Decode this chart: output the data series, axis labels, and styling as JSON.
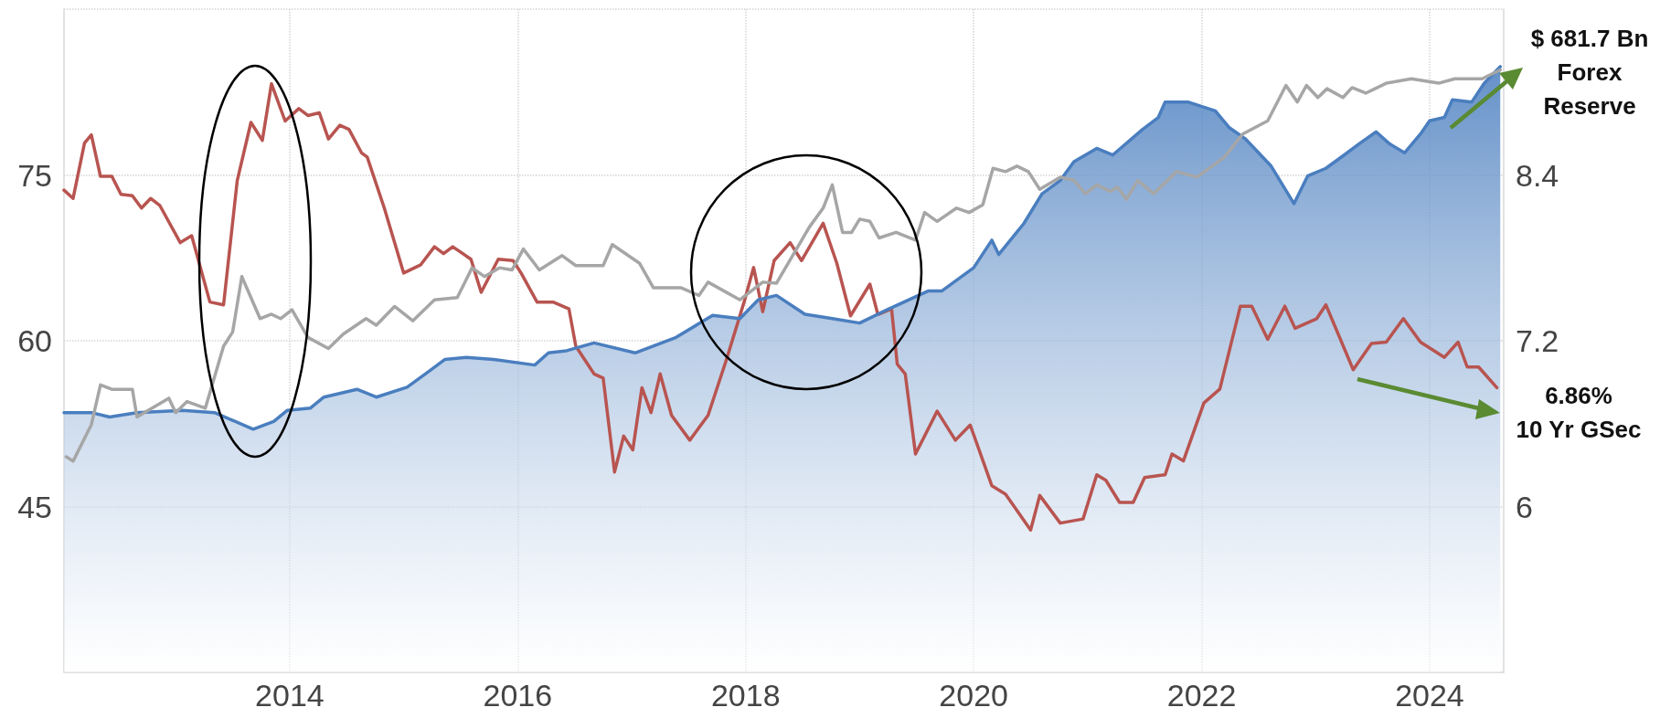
{
  "chart_data": {
    "type": "line",
    "annotations": [
      "$ 681.7 Bn\nForex\nReserve",
      "6.86%\n10 Yr GSec"
    ],
    "xlim": [
      2012.02,
      2024.65
    ],
    "xticks": [
      2014,
      2016,
      2018,
      2020,
      2022,
      2024
    ],
    "ylim": [
      30,
      90
    ],
    "yticks": [
      {
        "value": 30,
        "label": null
      },
      45,
      60,
      75,
      {
        "value": 90,
        "label": null
      }
    ],
    "y2lim": [
      4.8,
      9.6
    ],
    "y2ticks": [
      6,
      7.2,
      8.4
    ],
    "grid": true,
    "series": [
      {
        "axis": "y2",
        "color": "#b85450",
        "x": [
          2012.02,
          2012.1,
          2012.2,
          2012.26,
          2012.34,
          2012.44,
          2012.52,
          2012.62,
          2012.7,
          2012.78,
          2012.86,
          2013.04,
          2013.14,
          2013.3,
          2013.42,
          2013.54,
          2013.66,
          2013.76,
          2013.84,
          2013.96,
          2014.08,
          2014.16,
          2014.26,
          2014.34,
          2014.44,
          2014.52,
          2014.63,
          2014.68,
          2014.83,
          2015.0,
          2015.15,
          2015.27,
          2015.35,
          2015.43,
          2015.59,
          2015.68,
          2015.83,
          2015.96,
          2016.03,
          2016.17,
          2016.31,
          2016.45,
          2016.51,
          2016.67,
          2016.75,
          2016.85,
          2016.93,
          2017.01,
          2017.09,
          2017.17,
          2017.25,
          2017.35,
          2017.51,
          2017.67,
          2017.83,
          2017.99,
          2018.07,
          2018.15,
          2018.25,
          2018.39,
          2018.49,
          2018.68,
          2018.8,
          2018.92,
          2019.09,
          2019.16,
          2019.28,
          2019.33,
          2019.4,
          2019.49,
          2019.68,
          2019.84,
          2019.97,
          2020.16,
          2020.28,
          2020.5,
          2020.58,
          2020.76,
          2020.96,
          2021.08,
          2021.16,
          2021.28,
          2021.4,
          2021.5,
          2021.68,
          2021.74,
          2021.84,
          2022.02,
          2022.16,
          2022.34,
          2022.44,
          2022.58,
          2022.73,
          2022.82,
          2023.01,
          2023.09,
          2023.33,
          2023.49,
          2023.62,
          2023.77,
          2023.92,
          2024.13,
          2024.25,
          2024.33,
          2024.43,
          2024.59
        ],
        "values": [
          8.29,
          8.23,
          8.63,
          8.69,
          8.39,
          8.39,
          8.26,
          8.25,
          8.16,
          8.23,
          8.18,
          7.91,
          7.96,
          7.48,
          7.46,
          8.36,
          8.78,
          8.65,
          9.06,
          8.79,
          8.88,
          8.83,
          8.85,
          8.66,
          8.76,
          8.73,
          8.56,
          8.53,
          8.16,
          7.69,
          7.75,
          7.88,
          7.83,
          7.88,
          7.79,
          7.55,
          7.79,
          7.78,
          7.69,
          7.48,
          7.48,
          7.43,
          7.16,
          6.96,
          6.93,
          6.25,
          6.51,
          6.41,
          6.86,
          6.68,
          6.96,
          6.66,
          6.48,
          6.66,
          7.06,
          7.49,
          7.73,
          7.41,
          7.78,
          7.91,
          7.78,
          8.05,
          7.76,
          7.38,
          7.61,
          7.39,
          7.43,
          7.03,
          6.96,
          6.38,
          6.69,
          6.48,
          6.59,
          6.15,
          6.09,
          5.83,
          6.08,
          5.88,
          5.91,
          6.23,
          6.19,
          6.03,
          6.03,
          6.21,
          6.23,
          6.38,
          6.33,
          6.75,
          6.85,
          7.45,
          7.45,
          7.21,
          7.45,
          7.29,
          7.36,
          7.46,
          6.99,
          7.18,
          7.19,
          7.36,
          7.19,
          7.08,
          7.19,
          7.01,
          7.01,
          6.86
        ]
      },
      {
        "type": "area",
        "color": "#4a7ebf",
        "x": [
          2012.02,
          2012.26,
          2012.42,
          2012.66,
          2013.06,
          2013.34,
          2013.68,
          2013.86,
          2013.98,
          2014.18,
          2014.3,
          2014.59,
          2014.76,
          2015.03,
          2015.19,
          2015.36,
          2015.55,
          2015.79,
          2016.15,
          2016.27,
          2016.43,
          2016.67,
          2017.03,
          2017.39,
          2017.71,
          2017.95,
          2018.11,
          2018.27,
          2018.52,
          2018.76,
          2019.0,
          2019.24,
          2019.6,
          2019.72,
          2020.0,
          2020.16,
          2020.22,
          2020.44,
          2020.6,
          2020.76,
          2020.88,
          2021.08,
          2021.22,
          2021.48,
          2021.62,
          2021.68,
          2021.88,
          2022.12,
          2022.24,
          2022.38,
          2022.61,
          2022.81,
          2022.93,
          2023.09,
          2023.25,
          2023.38,
          2023.53,
          2023.65,
          2023.78,
          2023.92,
          2024.0,
          2024.13,
          2024.2,
          2024.37,
          2024.48,
          2024.62
        ],
        "values": [
          53.5,
          53.5,
          53.1,
          53.5,
          53.7,
          53.5,
          52.0,
          52.7,
          53.7,
          53.9,
          54.9,
          55.6,
          54.9,
          55.8,
          57.0,
          58.3,
          58.5,
          58.3,
          57.8,
          58.9,
          59.1,
          59.8,
          58.9,
          60.3,
          62.3,
          62.0,
          63.7,
          64.1,
          62.4,
          62.0,
          61.6,
          62.8,
          64.5,
          64.5,
          66.6,
          69.1,
          67.8,
          70.6,
          73.3,
          74.5,
          76.2,
          77.4,
          76.8,
          79.1,
          80.2,
          81.6,
          81.6,
          80.8,
          79.3,
          78.3,
          75.8,
          72.4,
          74.9,
          75.6,
          76.8,
          77.8,
          78.9,
          77.8,
          77.0,
          78.7,
          79.9,
          80.2,
          81.8,
          81.6,
          83.3,
          84.8
        ]
      },
      {
        "color": "#a6a6a6",
        "x": [
          2012.04,
          2012.1,
          2012.26,
          2012.34,
          2012.44,
          2012.62,
          2012.66,
          2012.94,
          2013.0,
          2013.1,
          2013.26,
          2013.42,
          2013.5,
          2013.58,
          2013.74,
          2013.84,
          2013.92,
          2014.02,
          2014.16,
          2014.34,
          2014.47,
          2014.67,
          2014.76,
          2014.92,
          2015.08,
          2015.27,
          2015.47,
          2015.6,
          2015.71,
          2015.84,
          2015.95,
          2016.05,
          2016.19,
          2016.39,
          2016.51,
          2016.75,
          2016.83,
          2017.07,
          2017.19,
          2017.43,
          2017.59,
          2017.67,
          2017.95,
          2018.15,
          2018.27,
          2018.56,
          2018.68,
          2018.76,
          2018.85,
          2018.93,
          2019.0,
          2019.09,
          2019.17,
          2019.32,
          2019.49,
          2019.57,
          2019.68,
          2019.85,
          2019.96,
          2020.08,
          2020.17,
          2020.28,
          2020.38,
          2020.48,
          2020.58,
          2020.76,
          2020.88,
          2020.98,
          2021.08,
          2021.2,
          2021.26,
          2021.34,
          2021.44,
          2021.58,
          2021.78,
          2021.96,
          2022.2,
          2022.36,
          2022.58,
          2022.74,
          2022.84,
          2022.92,
          2023.02,
          2023.1,
          2023.24,
          2023.32,
          2023.44,
          2023.62,
          2023.84,
          2024.08,
          2024.22,
          2024.46,
          2024.62
        ],
        "values": [
          49.5,
          49.1,
          52.4,
          56.0,
          55.6,
          55.6,
          53.1,
          54.8,
          53.5,
          54.5,
          53.9,
          59.5,
          60.8,
          65.8,
          62.0,
          62.4,
          62.0,
          62.8,
          60.3,
          59.3,
          60.6,
          62.0,
          61.4,
          63.1,
          61.8,
          63.7,
          63.9,
          66.6,
          65.8,
          66.6,
          66.4,
          68.3,
          66.4,
          67.7,
          66.8,
          66.8,
          68.7,
          67.0,
          64.8,
          64.8,
          64.1,
          65.3,
          63.7,
          65.3,
          65.2,
          70.3,
          72.0,
          74.1,
          69.8,
          69.8,
          71.0,
          70.8,
          69.3,
          69.8,
          69.1,
          71.6,
          70.8,
          72.0,
          71.6,
          72.3,
          75.6,
          75.3,
          75.8,
          75.3,
          73.7,
          74.8,
          74.5,
          73.3,
          74.1,
          73.5,
          73.9,
          72.8,
          74.5,
          73.3,
          75.3,
          74.8,
          76.6,
          78.7,
          79.9,
          83.1,
          81.6,
          83.1,
          82.0,
          82.8,
          82.0,
          82.9,
          82.4,
          83.3,
          83.7,
          83.3,
          83.7,
          83.7,
          84.5
        ]
      }
    ]
  }
}
